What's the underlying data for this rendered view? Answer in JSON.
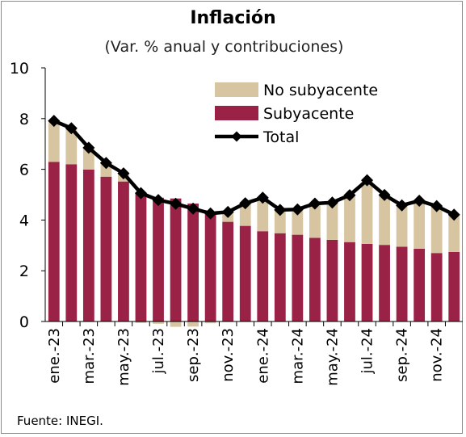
{
  "chart_data": {
    "type": "bar",
    "stacked": true,
    "title": "Inflación",
    "subtitle": "(Var. % anual y contribuciones)",
    "source": "Fuente: INEGI.",
    "ylim": [
      0,
      10
    ],
    "yticks": [
      0,
      2,
      4,
      6,
      8,
      10
    ],
    "categories": [
      "ene.-23",
      "feb.-23",
      "mar.-23",
      "abr.-23",
      "may.-23",
      "jun.-23",
      "jul.-23",
      "ago.-23",
      "sep.-23",
      "oct.-23",
      "nov.-23",
      "dic.-23",
      "ene.-24",
      "feb.-24",
      "mar.-24",
      "abr.-24",
      "may.-24",
      "jun.-24",
      "jul.-24",
      "ago.-24",
      "sep.-24",
      "oct.-24",
      "nov.-24",
      "dic.-24"
    ],
    "tick_labels": [
      {
        "index": 0,
        "label": "ene.-23"
      },
      {
        "index": 2,
        "label": "mar.-23"
      },
      {
        "index": 4,
        "label": "may.-23"
      },
      {
        "index": 6,
        "label": "jul.-23"
      },
      {
        "index": 8,
        "label": "sep.-23"
      },
      {
        "index": 10,
        "label": "nov.-23"
      },
      {
        "index": 12,
        "label": "ene.-24"
      },
      {
        "index": 14,
        "label": "mar.-24"
      },
      {
        "index": 16,
        "label": "may.-24"
      },
      {
        "index": 18,
        "label": "jul.-24"
      },
      {
        "index": 20,
        "label": "sep.-24"
      },
      {
        "index": 22,
        "label": "nov.-24"
      }
    ],
    "series": [
      {
        "name": "Subyacente",
        "kind": "bar",
        "color": "#9b2247",
        "values": [
          6.29,
          6.2,
          5.99,
          5.71,
          5.52,
          5.05,
          4.88,
          4.85,
          4.65,
          4.33,
          3.93,
          3.77,
          3.56,
          3.48,
          3.42,
          3.3,
          3.22,
          3.13,
          3.06,
          3.02,
          2.95,
          2.87,
          2.7,
          2.74
        ]
      },
      {
        "name": "No subyacente",
        "kind": "bar",
        "color": "#d7c5a1",
        "values": [
          1.62,
          1.42,
          0.86,
          0.53,
          0.32,
          -0.06,
          -0.09,
          -0.21,
          -0.2,
          -0.07,
          0.39,
          0.89,
          1.32,
          0.94,
          1.0,
          1.35,
          1.47,
          1.85,
          2.51,
          1.97,
          1.63,
          1.89,
          1.85,
          1.47
        ]
      },
      {
        "name": "Total",
        "kind": "line",
        "color": "#000000",
        "values": [
          7.91,
          7.62,
          6.85,
          6.25,
          5.84,
          5.06,
          4.79,
          4.64,
          4.45,
          4.26,
          4.32,
          4.66,
          4.88,
          4.4,
          4.42,
          4.65,
          4.69,
          4.98,
          5.57,
          4.99,
          4.58,
          4.76,
          4.55,
          4.21
        ]
      }
    ],
    "legend": {
      "placement": "top-right",
      "entries": [
        "No subyacente",
        "Subyacente",
        "Total"
      ]
    }
  }
}
